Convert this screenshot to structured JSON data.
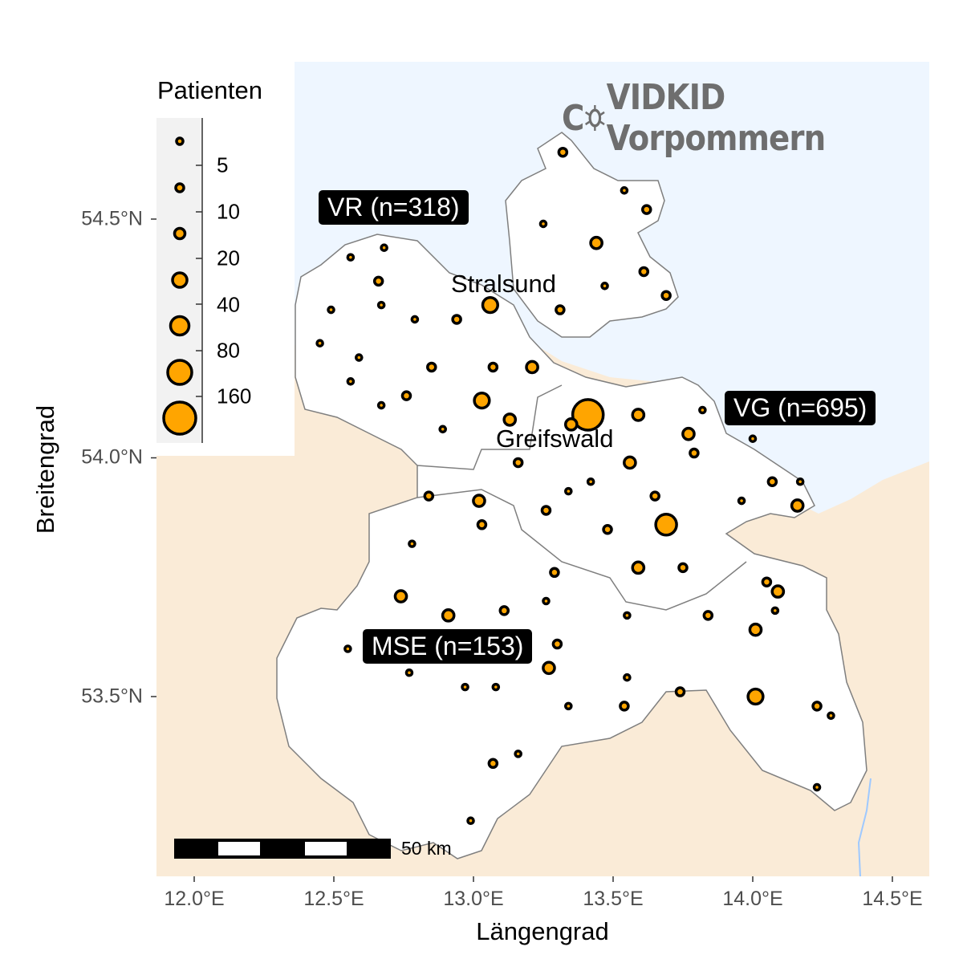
{
  "title": {
    "prefix": "C",
    "rest": "VIDKID Vorpommern",
    "icon": "virus-icon",
    "color": "#6e6e6e"
  },
  "colors": {
    "sea": "#eef6ff",
    "land": "#faebd7",
    "region": "#ffffff",
    "border": "#7f7f7f",
    "point_fill": "#ffa500",
    "point_stroke": "#000000"
  },
  "axes": {
    "x_title": "Längengrad",
    "y_title": "Breitengrad",
    "x_ticks": [
      {
        "value": 12.0,
        "label": "12.0°E"
      },
      {
        "value": 12.5,
        "label": "12.5°E"
      },
      {
        "value": 13.0,
        "label": "13.0°E"
      },
      {
        "value": 13.5,
        "label": "13.5°E"
      },
      {
        "value": 14.0,
        "label": "14.0°E"
      },
      {
        "value": 14.5,
        "label": "14.5°E"
      }
    ],
    "y_ticks": [
      {
        "value": 54.5,
        "label": "54.5°N"
      },
      {
        "value": 54.0,
        "label": "54.0°N"
      },
      {
        "value": 53.5,
        "label": "53.5°N"
      }
    ]
  },
  "legend": {
    "title": "Patienten",
    "breaks": [
      "5",
      "10",
      "20",
      "40",
      "80",
      "160"
    ]
  },
  "districts": [
    {
      "label": "VR (n=318)"
    },
    {
      "label": "VG (n=695)"
    },
    {
      "label": "MSE (n=153)"
    }
  ],
  "cities": [
    {
      "label": "Stralsund"
    },
    {
      "label": "Greifswald"
    }
  ],
  "scalebar": {
    "label": "50 km"
  },
  "points": [
    [
      13.32,
      54.64,
      4
    ],
    [
      13.54,
      54.56,
      2
    ],
    [
      13.62,
      54.52,
      4
    ],
    [
      13.25,
      54.49,
      2
    ],
    [
      13.44,
      54.45,
      8
    ],
    [
      12.56,
      54.42,
      2
    ],
    [
      12.68,
      54.44,
      2
    ],
    [
      12.66,
      54.37,
      4
    ],
    [
      13.61,
      54.39,
      4
    ],
    [
      13.47,
      54.36,
      2
    ],
    [
      13.69,
      54.34,
      4
    ],
    [
      13.06,
      54.32,
      14
    ],
    [
      13.31,
      54.31,
      4
    ],
    [
      12.49,
      54.31,
      2
    ],
    [
      12.67,
      54.32,
      2
    ],
    [
      12.94,
      54.29,
      4
    ],
    [
      12.79,
      54.29,
      2
    ],
    [
      12.45,
      54.24,
      2
    ],
    [
      12.59,
      54.21,
      2
    ],
    [
      12.85,
      54.19,
      4
    ],
    [
      13.07,
      54.19,
      4
    ],
    [
      13.21,
      54.19,
      8
    ],
    [
      12.56,
      54.16,
      2
    ],
    [
      12.67,
      54.11,
      2
    ],
    [
      12.76,
      54.13,
      4
    ],
    [
      13.03,
      54.12,
      14
    ],
    [
      13.13,
      54.08,
      8
    ],
    [
      13.41,
      54.09,
      58
    ],
    [
      13.35,
      54.07,
      8
    ],
    [
      13.59,
      54.09,
      8
    ],
    [
      13.82,
      54.1,
      2
    ],
    [
      13.77,
      54.05,
      8
    ],
    [
      13.79,
      54.01,
      4
    ],
    [
      12.89,
      54.06,
      2
    ],
    [
      14.0,
      54.04,
      2
    ],
    [
      13.16,
      53.99,
      4
    ],
    [
      13.56,
      53.99,
      8
    ],
    [
      13.42,
      53.95,
      2
    ],
    [
      13.34,
      53.93,
      2
    ],
    [
      12.84,
      53.92,
      4
    ],
    [
      13.02,
      53.91,
      8
    ],
    [
      13.26,
      53.89,
      4
    ],
    [
      13.65,
      53.92,
      4
    ],
    [
      14.07,
      53.95,
      4
    ],
    [
      14.17,
      53.95,
      2
    ],
    [
      13.96,
      53.91,
      2
    ],
    [
      14.16,
      53.9,
      8
    ],
    [
      13.03,
      53.86,
      4
    ],
    [
      13.48,
      53.85,
      4
    ],
    [
      13.69,
      53.86,
      27
    ],
    [
      12.78,
      53.82,
      2
    ],
    [
      13.59,
      53.77,
      8
    ],
    [
      13.75,
      53.77,
      4
    ],
    [
      13.29,
      53.76,
      4
    ],
    [
      14.05,
      53.74,
      4
    ],
    [
      14.09,
      53.72,
      8
    ],
    [
      12.74,
      53.71,
      8
    ],
    [
      13.26,
      53.7,
      2
    ],
    [
      12.91,
      53.67,
      8
    ],
    [
      13.11,
      53.68,
      4
    ],
    [
      13.55,
      53.67,
      2
    ],
    [
      13.84,
      53.67,
      4
    ],
    [
      14.08,
      53.68,
      2
    ],
    [
      14.01,
      53.64,
      8
    ],
    [
      12.55,
      53.6,
      2
    ],
    [
      13.3,
      53.61,
      4
    ],
    [
      13.27,
      53.56,
      8
    ],
    [
      12.77,
      53.55,
      2
    ],
    [
      12.97,
      53.52,
      2
    ],
    [
      13.08,
      53.52,
      2
    ],
    [
      13.55,
      53.54,
      2
    ],
    [
      13.74,
      53.51,
      4
    ],
    [
      14.01,
      53.5,
      14
    ],
    [
      13.34,
      53.48,
      2
    ],
    [
      13.54,
      53.48,
      4
    ],
    [
      14.23,
      53.48,
      4
    ],
    [
      14.28,
      53.46,
      2
    ],
    [
      13.07,
      53.36,
      4
    ],
    [
      13.16,
      53.38,
      2
    ],
    [
      14.23,
      53.31,
      2
    ],
    [
      12.99,
      53.24,
      2
    ]
  ]
}
